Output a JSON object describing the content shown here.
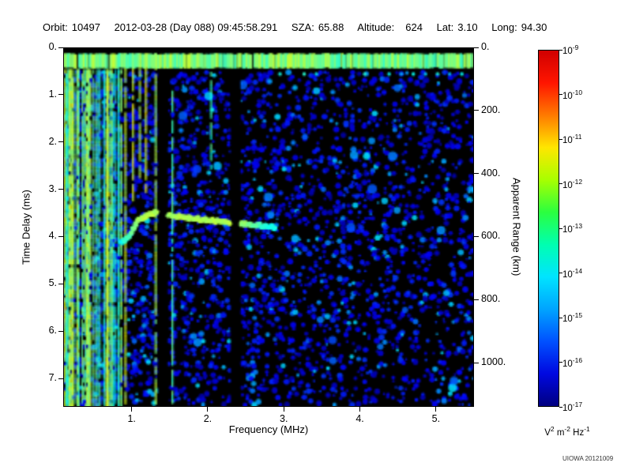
{
  "header": {
    "orbit_label": "Orbit:",
    "orbit_value": "10497",
    "datetime": "2012-03-28 (Day 088) 09:45:58.291",
    "sza_label": "SZA:",
    "sza_value": "65.88",
    "altitude_label": "Altitude:",
    "altitude_value": "624",
    "lat_label": "Lat:",
    "lat_value": "3.10",
    "long_label": "Long:",
    "long_value": "94.30"
  },
  "footer": {
    "credit": "UIOWA 20121009"
  },
  "chart_data": {
    "type": "heatmap",
    "description": "Radar sounder ionogram: received spectral density vs sounding frequency and echo time delay; bright horizontal band near 0.3 ms is the transmit pulse, green arc near 3.5-3.8 ms between 0.9 and 2.9 MHz is the ionospheric echo trace, vertical green striping below 0.9 MHz is local plasma oscillation noise",
    "xlabel": "Frequency (MHz)",
    "ylabel_left": "Time Delay (ms)",
    "ylabel_right": "Apparent Range (km)",
    "xlim_mhz": [
      0.1,
      5.5
    ],
    "ylim_ms": [
      0.0,
      7.6
    ],
    "right_axis_km_per_ms": 150,
    "x_ticks": [
      {
        "value": 1.0,
        "label": "1."
      },
      {
        "value": 2.0,
        "label": "2."
      },
      {
        "value": 3.0,
        "label": "3."
      },
      {
        "value": 4.0,
        "label": "4."
      },
      {
        "value": 5.0,
        "label": "5."
      }
    ],
    "y_ticks_ms": [
      {
        "value": 0,
        "label": "0."
      },
      {
        "value": 1,
        "label": "1."
      },
      {
        "value": 2,
        "label": "2."
      },
      {
        "value": 3,
        "label": "3."
      },
      {
        "value": 4,
        "label": "4."
      },
      {
        "value": 5,
        "label": "5."
      },
      {
        "value": 6,
        "label": "6."
      },
      {
        "value": 7,
        "label": "7."
      }
    ],
    "right_ticks_km": [
      {
        "value": 0,
        "label": "0."
      },
      {
        "value": 200,
        "label": "200."
      },
      {
        "value": 400,
        "label": "400."
      },
      {
        "value": 600,
        "label": "600."
      },
      {
        "value": 800,
        "label": "800."
      },
      {
        "value": 1000,
        "label": "1000."
      }
    ],
    "plot_bg": "#000000",
    "colorbar": {
      "scale": "log10",
      "max": "1e-9",
      "min": "1e-17",
      "ticks": [
        {
          "base": "10",
          "exp": "-9"
        },
        {
          "base": "10",
          "exp": "-10"
        },
        {
          "base": "10",
          "exp": "-11"
        },
        {
          "base": "10",
          "exp": "-12"
        },
        {
          "base": "10",
          "exp": "-13"
        },
        {
          "base": "10",
          "exp": "-14"
        },
        {
          "base": "10",
          "exp": "-15"
        },
        {
          "base": "10",
          "exp": "-16"
        },
        {
          "base": "10",
          "exp": "-17"
        }
      ],
      "unit_parts": [
        {
          "base": "V",
          "exp": "2"
        },
        {
          "base": " m",
          "exp": "-2"
        },
        {
          "base": " Hz",
          "exp": "-1"
        }
      ],
      "gradient_top_to_bottom": [
        "#d00000",
        "#ff1500",
        "#ff7a00",
        "#ffe600",
        "#a8ff00",
        "#2bff3f",
        "#00ffb0",
        "#00e4ff",
        "#00a4ff",
        "#0051ff",
        "#0008e0",
        "#000080"
      ]
    },
    "features": {
      "seed": 20121009,
      "transmit_band_ms": [
        0.12,
        0.42
      ],
      "dashed_echo_ms": 0.55,
      "dashed_echo_range_mhz": [
        2.95,
        5.45
      ],
      "ionosphere_trace_mhz_ms": [
        [
          0.85,
          4.15
        ],
        [
          0.95,
          4.0
        ],
        [
          1.1,
          3.62
        ],
        [
          1.3,
          3.5
        ],
        [
          1.6,
          3.58
        ],
        [
          2.0,
          3.66
        ],
        [
          2.4,
          3.72
        ],
        [
          2.9,
          3.82
        ]
      ],
      "plasma_noise_band_mhz": [
        0.1,
        0.85
      ],
      "discrete_stripes": [
        {
          "mhz": 0.9,
          "ms0": 0.1,
          "ms1": 7.55,
          "strength": 0.52
        },
        {
          "mhz": 1.0,
          "ms0": 0.1,
          "ms1": 3.2,
          "strength": 0.55
        },
        {
          "mhz": 1.09,
          "ms0": 0.15,
          "ms1": 2.7,
          "strength": 0.5
        },
        {
          "mhz": 1.17,
          "ms0": 0.1,
          "ms1": 3.0,
          "strength": 0.55
        },
        {
          "mhz": 1.3,
          "ms0": 0.1,
          "ms1": 7.55,
          "strength": 0.48
        },
        {
          "mhz": 1.52,
          "ms0": 0.9,
          "ms1": 7.55,
          "strength": 0.4
        },
        {
          "mhz": 2.03,
          "ms0": 0.5,
          "ms1": 2.5,
          "strength": 0.38
        }
      ],
      "blackout_columns_mhz": [
        [
          1.34,
          1.47
        ],
        [
          2.3,
          2.43
        ]
      ]
    }
  }
}
